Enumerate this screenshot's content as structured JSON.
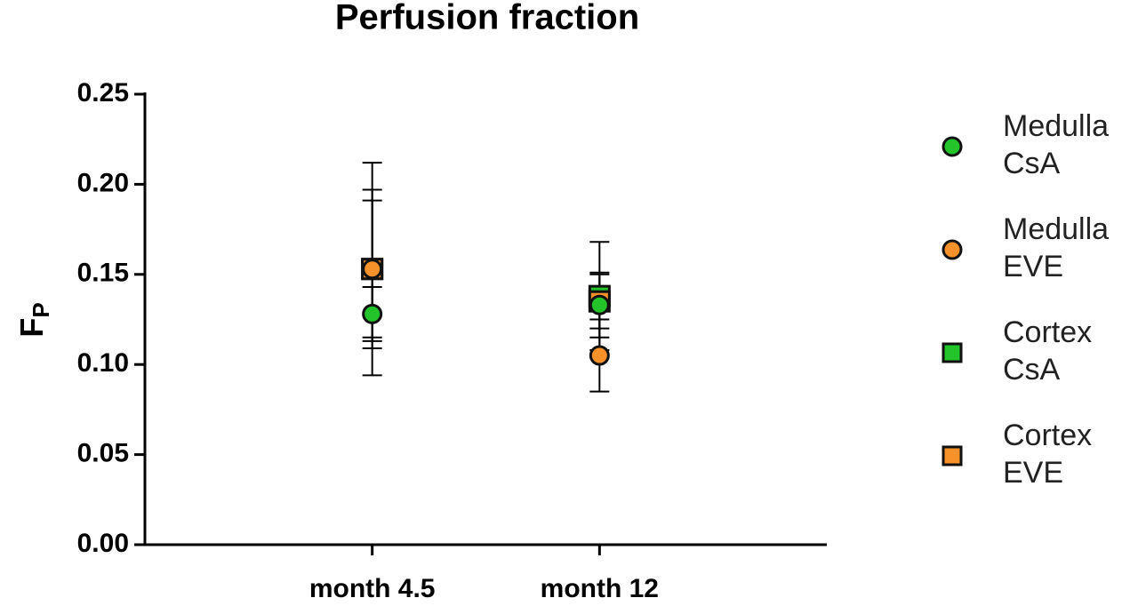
{
  "chart_data": {
    "type": "scatter",
    "title": "Perfusion fraction",
    "ylabel": "F",
    "ylabel_sub": "P",
    "categories": [
      "month 4.5",
      "month 12"
    ],
    "series": [
      {
        "name": "Medulla CsA",
        "marker": "circle",
        "color": "#22c42a",
        "values": [
          0.128,
          0.133
        ],
        "errors": [
          0.015,
          0.018
        ]
      },
      {
        "name": "Medulla EVE",
        "marker": "circle",
        "color": "#f7922a",
        "values": [
          0.153,
          0.105
        ],
        "errors": [
          0.038,
          0.02
        ]
      },
      {
        "name": "Cortex CsA",
        "marker": "square",
        "color": "#22c42a",
        "values": [
          0.153,
          0.138
        ],
        "errors": [
          0.044,
          0.03
        ]
      },
      {
        "name": "Cortex EVE",
        "marker": "square",
        "color": "#f7922a",
        "values": [
          0.153,
          0.135
        ],
        "errors": [
          0.059,
          0.015
        ]
      }
    ],
    "ylim": [
      0,
      0.25
    ],
    "yticks": [
      {
        "value": 0,
        "label": "0.00"
      },
      {
        "value": 0.05,
        "label": "0.05"
      },
      {
        "value": 0.1,
        "label": "0.10"
      },
      {
        "value": 0.15,
        "label": "0.15"
      },
      {
        "value": 0.2,
        "label": "0.20"
      },
      {
        "value": 0.25,
        "label": "0.25"
      }
    ]
  }
}
